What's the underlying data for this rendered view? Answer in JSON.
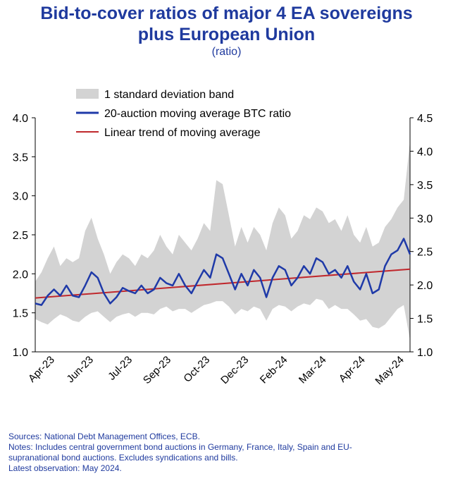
{
  "title_line1": "Bid-to-cover ratios of major 4 EA sovereigns",
  "title_line2": "plus European Union",
  "subtitle": "(ratio)",
  "notes": {
    "sources": "Sources: National Debt Management Offices, ECB.",
    "notes_line1": "Notes: Includes central government bond auctions in Germany, France, Italy, Spain and EU-",
    "notes_line2": "supranational bond auctions. Excludes syndications and bills.",
    "latest": "Latest observation: May 2024."
  },
  "chart_data": {
    "type": "line",
    "x_tick_labels": [
      "Apr-23",
      "Jun-23",
      "Jul-23",
      "Sep-23",
      "Oct-23",
      "Dec-23",
      "Feb-24",
      "Mar-24",
      "Apr-24",
      "May-24"
    ],
    "y_left": {
      "range": [
        1.0,
        4.0
      ],
      "ticks": [
        "1.0",
        "1.5",
        "2.0",
        "2.5",
        "3.0",
        "3.5",
        "4.0"
      ]
    },
    "y_right": {
      "range": [
        1.0,
        4.5
      ],
      "ticks": [
        "1.0",
        "1.5",
        "2.0",
        "2.5",
        "3.0",
        "3.5",
        "4.0",
        "4.5"
      ]
    },
    "legend": [
      {
        "label": "1 standard deviation band",
        "color": "#d3d3d3",
        "kind": "band"
      },
      {
        "label": "20-auction moving average BTC ratio",
        "color": "#1f3aa8",
        "kind": "line"
      },
      {
        "label": "Linear trend of moving average",
        "color": "#c0282d",
        "kind": "line"
      }
    ],
    "legend_position": "top-left",
    "x_index_range": [
      0,
      60
    ],
    "series": [
      {
        "name": "20-auction moving average BTC ratio",
        "x": [
          0,
          1,
          2,
          3,
          4,
          5,
          6,
          7,
          8,
          9,
          10,
          11,
          12,
          13,
          14,
          15,
          16,
          17,
          18,
          19,
          20,
          21,
          22,
          23,
          24,
          25,
          26,
          27,
          28,
          29,
          30,
          31,
          32,
          33,
          34,
          35,
          36,
          37,
          38,
          39,
          40,
          41,
          42,
          43,
          44,
          45,
          46,
          47,
          48,
          49,
          50,
          51,
          52,
          53,
          54,
          55,
          56,
          57,
          58,
          59,
          60
        ],
        "y": [
          1.62,
          1.6,
          1.72,
          1.8,
          1.72,
          1.85,
          1.72,
          1.7,
          1.85,
          2.02,
          1.95,
          1.75,
          1.62,
          1.7,
          1.82,
          1.78,
          1.75,
          1.85,
          1.75,
          1.8,
          1.95,
          1.88,
          1.85,
          2.0,
          1.85,
          1.75,
          1.9,
          2.05,
          1.95,
          2.25,
          2.2,
          2.0,
          1.8,
          2.0,
          1.85,
          2.05,
          1.95,
          1.7,
          1.95,
          2.1,
          2.05,
          1.85,
          1.95,
          2.1,
          2.0,
          2.2,
          2.15,
          2.0,
          2.05,
          1.95,
          2.1,
          1.9,
          1.8,
          2.0,
          1.75,
          1.8,
          2.1,
          2.25,
          2.3,
          2.45,
          2.25
        ],
        "lower": [
          1.42,
          1.38,
          1.35,
          1.42,
          1.48,
          1.45,
          1.4,
          1.38,
          1.45,
          1.5,
          1.52,
          1.45,
          1.38,
          1.45,
          1.48,
          1.5,
          1.45,
          1.5,
          1.5,
          1.48,
          1.55,
          1.58,
          1.52,
          1.55,
          1.55,
          1.5,
          1.55,
          1.6,
          1.62,
          1.65,
          1.65,
          1.58,
          1.48,
          1.55,
          1.52,
          1.58,
          1.55,
          1.4,
          1.55,
          1.6,
          1.58,
          1.52,
          1.58,
          1.62,
          1.6,
          1.68,
          1.66,
          1.55,
          1.6,
          1.55,
          1.55,
          1.48,
          1.4,
          1.42,
          1.32,
          1.3,
          1.35,
          1.45,
          1.55,
          1.6,
          1.15
        ],
        "upper": [
          1.9,
          2.02,
          2.2,
          2.35,
          2.1,
          2.2,
          2.15,
          2.2,
          2.55,
          2.72,
          2.45,
          2.25,
          2.0,
          2.15,
          2.25,
          2.2,
          2.1,
          2.25,
          2.2,
          2.3,
          2.5,
          2.35,
          2.25,
          2.5,
          2.4,
          2.3,
          2.45,
          2.65,
          2.55,
          3.2,
          3.15,
          2.75,
          2.35,
          2.6,
          2.4,
          2.6,
          2.5,
          2.3,
          2.65,
          2.85,
          2.75,
          2.45,
          2.55,
          2.75,
          2.7,
          2.85,
          2.8,
          2.65,
          2.7,
          2.55,
          2.75,
          2.5,
          2.4,
          2.6,
          2.35,
          2.4,
          2.6,
          2.7,
          2.85,
          2.95,
          3.7
        ]
      },
      {
        "name": "Linear trend of moving average",
        "x": [
          0,
          60
        ],
        "y": [
          1.69,
          2.06
        ]
      }
    ]
  }
}
